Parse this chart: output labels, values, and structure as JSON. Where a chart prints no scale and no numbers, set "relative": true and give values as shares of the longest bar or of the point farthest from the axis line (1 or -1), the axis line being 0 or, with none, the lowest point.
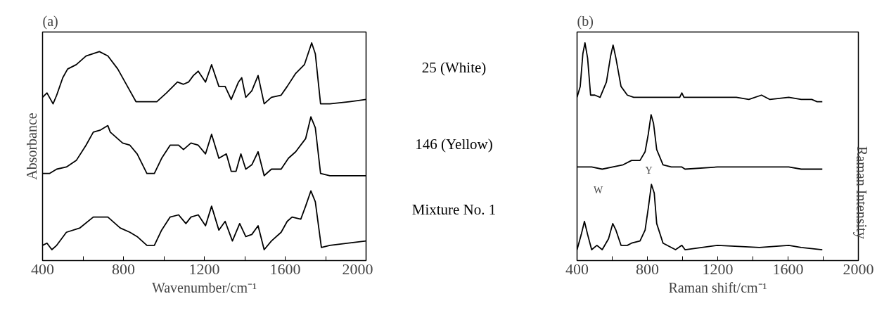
{
  "chart_data": [
    {
      "type": "line",
      "title": "(a)",
      "xlabel": "Wavenumber/cm⁻¹",
      "ylabel": "Absorbance",
      "relative": true,
      "legend": false,
      "grid": false,
      "marker": "none",
      "line_style": "solid",
      "tick_labels": "x",
      "xlim": [
        400,
        2000
      ],
      "xticks": [
        400,
        {
          "value": 600,
          "label": null
        },
        800,
        {
          "value": 1000,
          "label": null
        },
        1200,
        {
          "value": 1400,
          "label": null
        },
        1600,
        {
          "value": 1800,
          "label": null
        },
        2000
      ],
      "series": [
        {
          "name": "25 (White)",
          "color": "#000000",
          "x": [
            400,
            422,
            434,
            452,
            470,
            500,
            524,
            567,
            615,
            681,
            723,
            772,
            820,
            862,
            916,
            965,
            1013,
            1067,
            1097,
            1122,
            1146,
            1170,
            1206,
            1236,
            1272,
            1303,
            1333,
            1369,
            1385,
            1405,
            1435,
            1466,
            1496,
            1532,
            1580,
            1610,
            1652,
            1695,
            1731,
            1749,
            1775,
            1821,
            1918,
            2000
          ],
          "values": [
            0.75,
            0.77,
            0.75,
            0.72,
            0.76,
            0.84,
            0.88,
            0.9,
            0.94,
            0.96,
            0.94,
            0.88,
            0.8,
            0.73,
            0.73,
            0.73,
            0.77,
            0.82,
            0.81,
            0.82,
            0.85,
            0.87,
            0.82,
            0.9,
            0.8,
            0.8,
            0.74,
            0.82,
            0.84,
            0.75,
            0.78,
            0.85,
            0.72,
            0.75,
            0.76,
            0.8,
            0.86,
            0.9,
            1.0,
            0.95,
            0.72,
            0.72,
            0.73,
            0.74
          ]
        },
        {
          "name": "146 (Yellow)",
          "color": "#000000",
          "x": [
            400,
            434,
            470,
            518,
            567,
            615,
            651,
            687,
            723,
            735,
            796,
            832,
            868,
            916,
            953,
            989,
            1031,
            1073,
            1097,
            1134,
            1170,
            1206,
            1236,
            1272,
            1309,
            1333,
            1357,
            1381,
            1405,
            1435,
            1466,
            1496,
            1532,
            1580,
            1616,
            1652,
            1701,
            1727,
            1749,
            1775,
            1821,
            2000
          ],
          "values": [
            0.4,
            0.4,
            0.42,
            0.43,
            0.46,
            0.53,
            0.59,
            0.6,
            0.62,
            0.59,
            0.54,
            0.53,
            0.49,
            0.4,
            0.4,
            0.47,
            0.53,
            0.53,
            0.51,
            0.54,
            0.53,
            0.49,
            0.58,
            0.47,
            0.49,
            0.41,
            0.41,
            0.49,
            0.42,
            0.44,
            0.5,
            0.39,
            0.42,
            0.42,
            0.47,
            0.5,
            0.56,
            0.66,
            0.61,
            0.4,
            0.39,
            0.39
          ]
        },
        {
          "name": "Mixture No. 1",
          "color": "#000000",
          "x": [
            400,
            422,
            446,
            470,
            518,
            585,
            651,
            723,
            784,
            832,
            868,
            916,
            953,
            989,
            1031,
            1073,
            1109,
            1134,
            1170,
            1206,
            1236,
            1272,
            1303,
            1339,
            1375,
            1405,
            1435,
            1466,
            1496,
            1532,
            1580,
            1610,
            1634,
            1677,
            1701,
            1727,
            1749,
            1779,
            1821,
            2000
          ],
          "values": [
            0.07,
            0.08,
            0.05,
            0.07,
            0.13,
            0.15,
            0.2,
            0.2,
            0.15,
            0.13,
            0.11,
            0.07,
            0.07,
            0.14,
            0.2,
            0.21,
            0.17,
            0.2,
            0.21,
            0.16,
            0.25,
            0.14,
            0.18,
            0.09,
            0.17,
            0.11,
            0.12,
            0.16,
            0.05,
            0.09,
            0.13,
            0.18,
            0.2,
            0.19,
            0.25,
            0.32,
            0.27,
            0.06,
            0.07,
            0.09
          ]
        }
      ]
    },
    {
      "type": "line",
      "title": "(b)",
      "xlabel": "Raman shift/cm⁻¹",
      "y2label": "Raman Intensity",
      "relative": true,
      "legend": false,
      "grid": false,
      "marker": "none",
      "line_style": "solid",
      "tick_labels": "x",
      "xlim": [
        400,
        2000
      ],
      "xticks": [
        400,
        {
          "value": 600,
          "label": null
        },
        800,
        {
          "value": 1000,
          "label": null
        },
        1200,
        {
          "value": 1400,
          "label": null
        },
        1600,
        {
          "value": 1800,
          "label": null
        },
        2000
      ],
      "annotations": [
        "W",
        "Y"
      ],
      "series": [
        {
          "color": "#000000",
          "x": [
            400,
            418,
            433,
            445,
            460,
            477,
            501,
            531,
            567,
            591,
            605,
            621,
            650,
            686,
            722,
            841,
            984,
            996,
            1008,
            1079,
            1199,
            1306,
            1377,
            1449,
            1497,
            1604,
            1675,
            1735,
            1765,
            1795
          ],
          "values": [
            0.75,
            0.8,
            0.95,
            1.0,
            0.93,
            0.76,
            0.76,
            0.75,
            0.82,
            0.94,
            0.99,
            0.93,
            0.8,
            0.76,
            0.75,
            0.75,
            0.75,
            0.77,
            0.75,
            0.75,
            0.75,
            0.75,
            0.74,
            0.76,
            0.74,
            0.75,
            0.74,
            0.74,
            0.73,
            0.73
          ]
        },
        {
          "color": "#000000",
          "x": [
            400,
            483,
            543,
            603,
            662,
            710,
            758,
            787,
            805,
            821,
            835,
            853,
            889,
            936,
            996,
            1014,
            1199,
            1437,
            1604,
            1675,
            1795
          ],
          "values": [
            0.43,
            0.43,
            0.42,
            0.43,
            0.44,
            0.46,
            0.46,
            0.5,
            0.58,
            0.67,
            0.63,
            0.51,
            0.44,
            0.43,
            0.43,
            0.42,
            0.43,
            0.43,
            0.43,
            0.42,
            0.42
          ]
        },
        {
          "color": "#000000",
          "x": [
            400,
            424,
            442,
            460,
            483,
            513,
            543,
            579,
            603,
            621,
            650,
            686,
            710,
            758,
            787,
            805,
            823,
            839,
            853,
            889,
            960,
            996,
            1014,
            1199,
            1437,
            1604,
            1675,
            1795
          ],
          "values": [
            0.05,
            0.12,
            0.18,
            0.12,
            0.05,
            0.07,
            0.05,
            0.1,
            0.17,
            0.14,
            0.07,
            0.07,
            0.08,
            0.09,
            0.14,
            0.24,
            0.35,
            0.31,
            0.17,
            0.08,
            0.05,
            0.07,
            0.05,
            0.07,
            0.06,
            0.07,
            0.06,
            0.05
          ]
        }
      ]
    }
  ]
}
